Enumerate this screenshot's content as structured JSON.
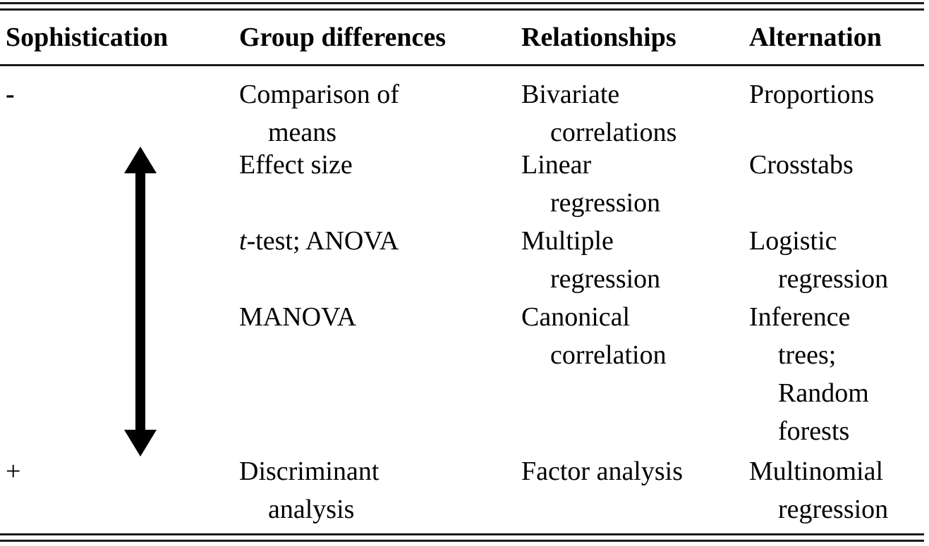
{
  "table": {
    "headers": [
      "Sophistication",
      "Group differences",
      "Relationships",
      "Alternation"
    ],
    "scale_low": "-",
    "scale_high": "+",
    "rows": [
      {
        "group": [
          "Comparison of",
          "means"
        ],
        "rel": [
          "Bivariate",
          "correlations"
        ],
        "alt": [
          "Proportions"
        ]
      },
      {
        "group": [
          "Effect size"
        ],
        "rel": [
          "Linear",
          "regression"
        ],
        "alt": [
          "Crosstabs"
        ]
      },
      {
        "group_italic": "t",
        "group": [
          "-test; ANOVA"
        ],
        "rel": [
          "Multiple",
          "regression"
        ],
        "alt": [
          "Logistic",
          "regression"
        ]
      },
      {
        "group": [
          "MANOVA"
        ],
        "rel": [
          "Canonical",
          "correlation"
        ],
        "alt": [
          "Inference",
          "trees;",
          "Random",
          "forests"
        ]
      },
      {
        "group": [
          "Discriminant",
          "analysis"
        ],
        "rel": [
          "Factor analysis"
        ],
        "alt": [
          "Multinomial",
          "regression"
        ]
      }
    ]
  },
  "arrow_icon": "double-headed-vertical-arrow-icon"
}
